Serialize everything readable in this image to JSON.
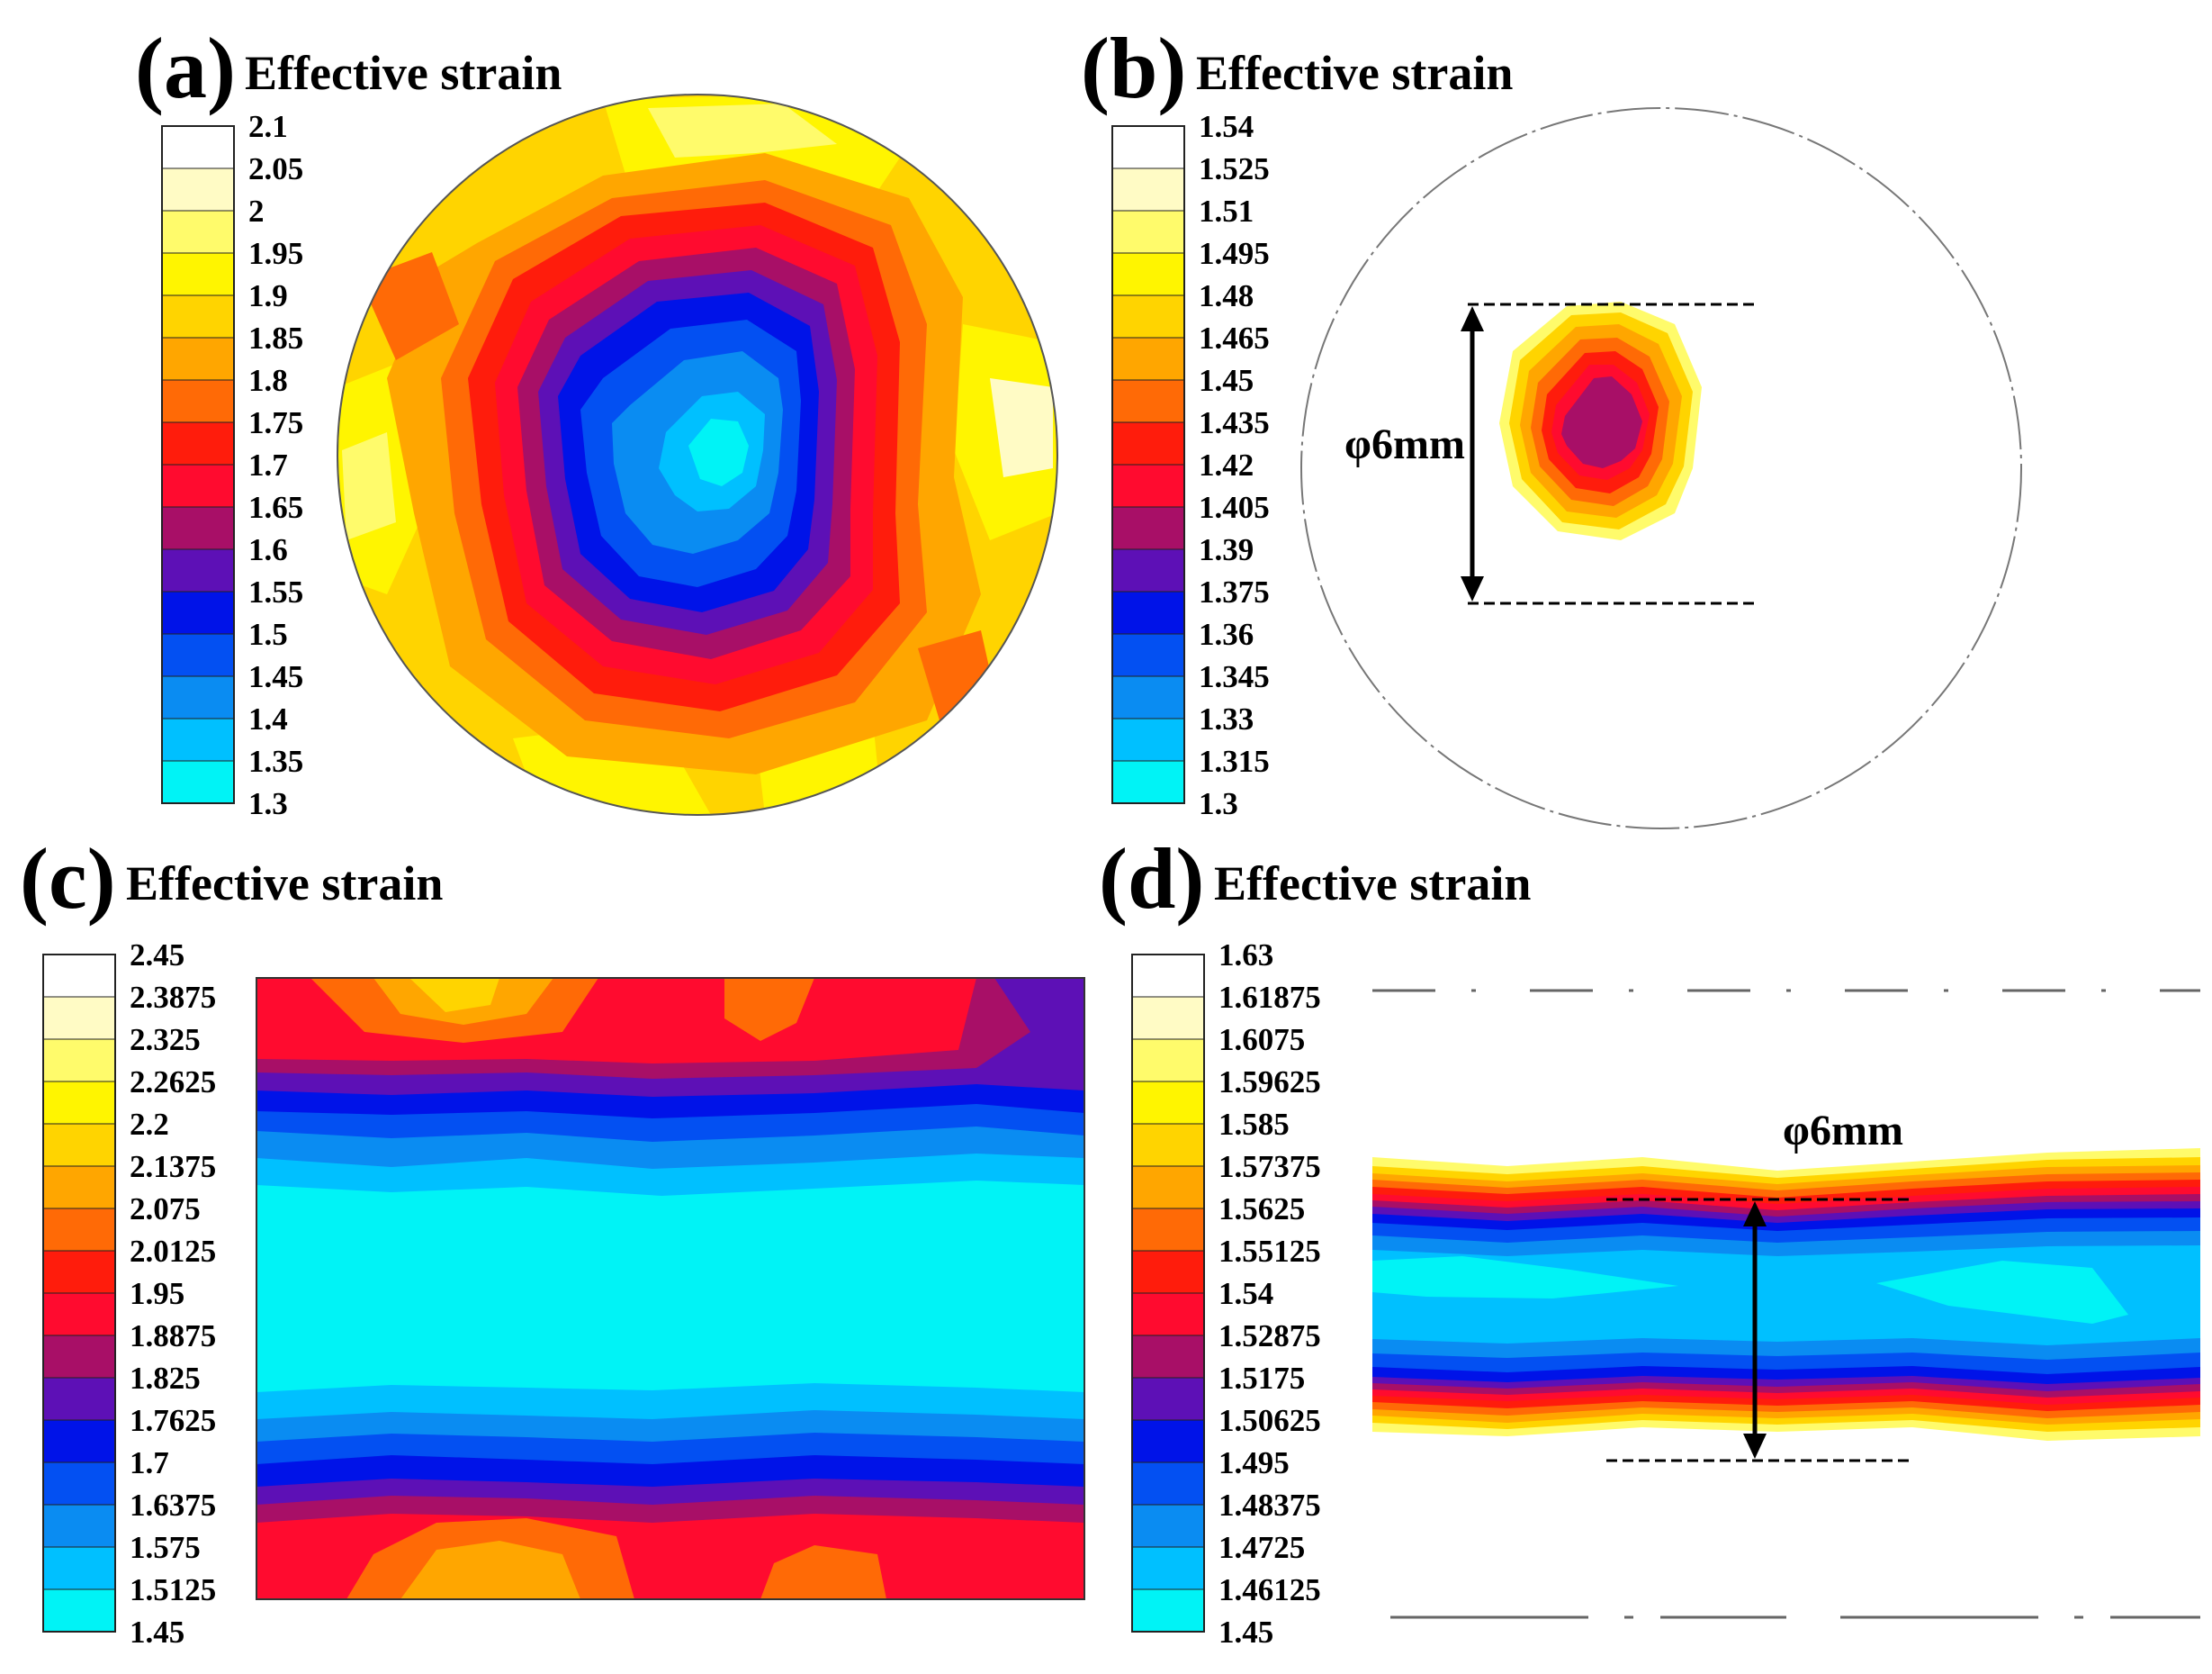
{
  "colormap": [
    "#00f3f6",
    "#00c0ff",
    "#0a8cf2",
    "#0350f2",
    "#0013e8",
    "#5d10b6",
    "#a80f67",
    "#ff0b2f",
    "#ff1c0c",
    "#ff6a06",
    "#ffa600",
    "#ffd400",
    "#fff500",
    "#fffb6b",
    "#fffbc5",
    "#ffffff"
  ],
  "panels": {
    "a": {
      "letter": "a",
      "title": "Effective strain",
      "ticks": [
        "2.1",
        "2.05",
        "2",
        "1.95",
        "1.9",
        "1.85",
        "1.8",
        "1.75",
        "1.7",
        "1.65",
        "1.6",
        "1.55",
        "1.5",
        "1.45",
        "1.4",
        "1.35",
        "1.3"
      ]
    },
    "b": {
      "letter": "b",
      "title": "Effective strain",
      "ticks": [
        "1.54",
        "1.525",
        "1.51",
        "1.495",
        "1.48",
        "1.465",
        "1.45",
        "1.435",
        "1.42",
        "1.405",
        "1.39",
        "1.375",
        "1.36",
        "1.345",
        "1.33",
        "1.315",
        "1.3"
      ],
      "dimension": "φ6mm"
    },
    "c": {
      "letter": "c",
      "title": "Effective strain",
      "ticks": [
        "2.45",
        "2.3875",
        "2.325",
        "2.2625",
        "2.2",
        "2.1375",
        "2.075",
        "2.0125",
        "1.95",
        "1.8875",
        "1.825",
        "1.7625",
        "1.7",
        "1.6375",
        "1.575",
        "1.5125",
        "1.45"
      ]
    },
    "d": {
      "letter": "d",
      "title": "Effective strain",
      "ticks": [
        "1.63",
        "1.61875",
        "1.6075",
        "1.59625",
        "1.585",
        "1.57375",
        "1.5625",
        "1.55125",
        "1.54",
        "1.52875",
        "1.5175",
        "1.50625",
        "1.495",
        "1.48375",
        "1.4725",
        "1.46125",
        "1.45"
      ],
      "dimension": "φ6mm"
    }
  }
}
